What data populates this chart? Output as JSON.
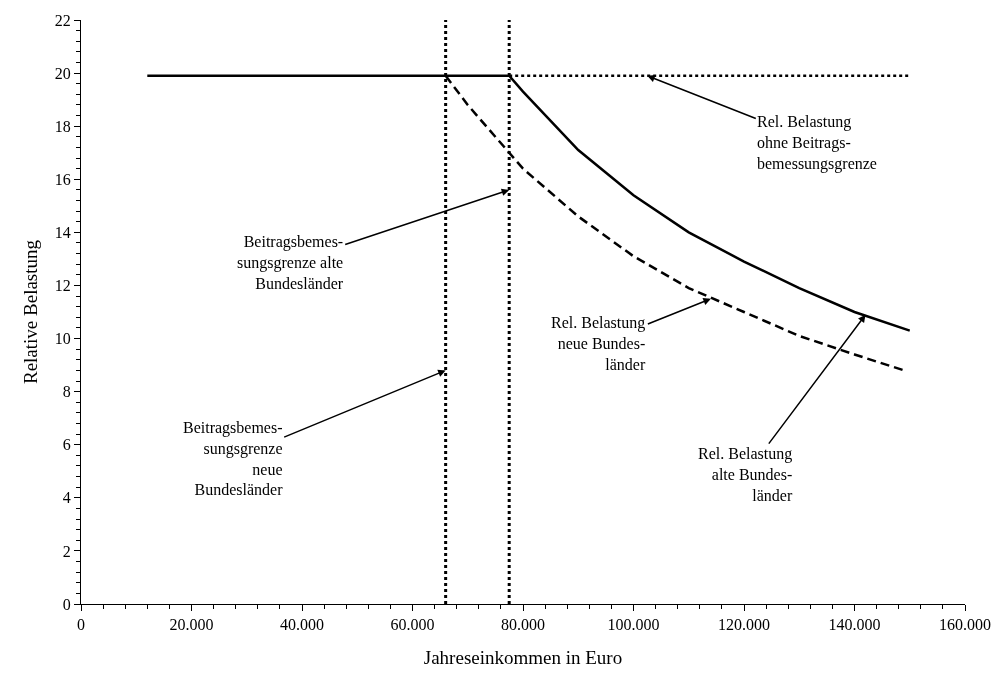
{
  "chart_data": {
    "type": "line",
    "xlabel": "Jahreseinkommen in Euro",
    "ylabel": "Relative Belastung",
    "xlim": [
      0,
      160000
    ],
    "ylim": [
      0,
      22
    ],
    "xticks": [
      0,
      {
        "value": 20000,
        "label": "20.000"
      },
      {
        "value": 40000,
        "label": "40.000"
      },
      {
        "value": 60000,
        "label": "60.000"
      },
      {
        "value": 80000,
        "label": "80.000"
      },
      {
        "value": 100000,
        "label": "100.000"
      },
      {
        "value": 120000,
        "label": "120.000"
      },
      {
        "value": 140000,
        "label": "140.000"
      },
      {
        "value": 160000,
        "label": "160.000"
      }
    ],
    "yticks": [
      0,
      2,
      4,
      6,
      8,
      10,
      12,
      14,
      16,
      18,
      20,
      22
    ],
    "marker": "none",
    "series": [
      {
        "color": "#000000",
        "line_style": "solid",
        "x": [
          12000,
          77500,
          80000,
          90000,
          100000,
          110000,
          120000,
          130000,
          140000,
          150000
        ],
        "values": [
          19.9,
          19.9,
          19.3,
          17.1,
          15.4,
          14.0,
          12.9,
          11.9,
          11.0,
          10.3
        ]
      },
      {
        "color": "#000000",
        "line_style": "dashed",
        "x": [
          66000,
          70000,
          80000,
          90000,
          100000,
          110000,
          120000,
          130000,
          140000,
          149000
        ],
        "values": [
          19.9,
          18.8,
          16.4,
          14.6,
          13.1,
          11.9,
          11.0,
          10.1,
          9.4,
          8.8
        ]
      },
      {
        "color": "#000000",
        "line_style": "dotted",
        "x": [
          77500,
          150000
        ],
        "values": [
          19.9,
          19.9
        ]
      }
    ],
    "ref_lines": [
      {
        "axis": "x",
        "value": 66000,
        "color": "#000000",
        "line_style": "dotted"
      },
      {
        "axis": "x",
        "value": 77500,
        "color": "#000000",
        "line_style": "dotted"
      }
    ],
    "annotations": [
      {
        "text": "Rel. Belastung\nohne Beitrags-\nbemessungsgrenze",
        "x": 102500,
        "y": 19.9
      },
      {
        "text": "Beitragsbemes-\nsungsgrenze alte\nBundesländer",
        "x": 77500,
        "y": 15.6
      },
      {
        "text": "Beitragsbemes-\nsungsgrenze\nneue\nBundesländer",
        "x": 66000,
        "y": 8.8
      },
      {
        "text": "Rel. Belastung\nneue Bundes-\nländer",
        "x": 114000,
        "y": 11.5
      },
      {
        "text": "Rel. Belastung\nalte Bundes-\nländer",
        "x": 142000,
        "y": 10.9
      }
    ]
  }
}
